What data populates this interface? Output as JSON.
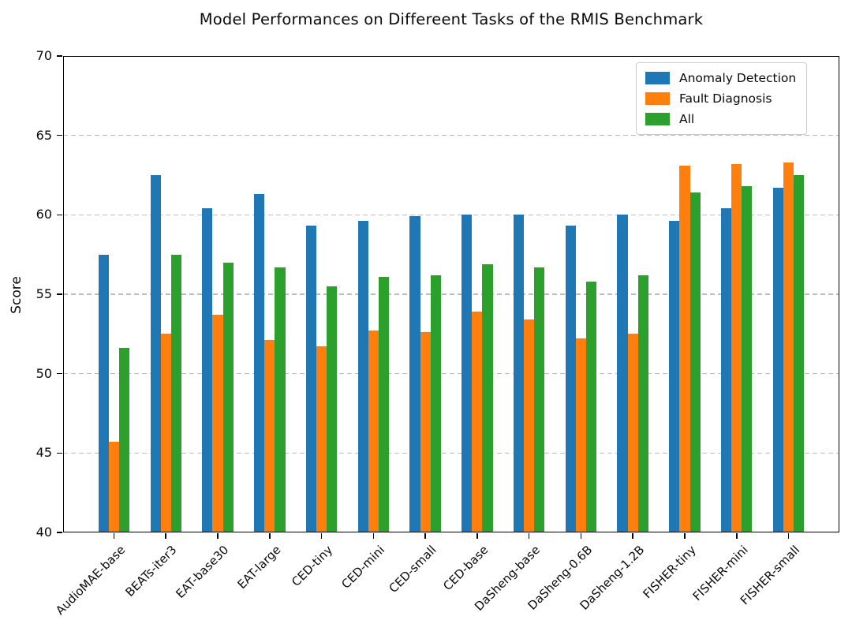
{
  "figure": {
    "background": "#ffffff",
    "text_color": "#0a0a0a",
    "grid_color": "#bcbcbc",
    "spine_color": "#000000",
    "legend_border_color": "#cccccc"
  },
  "chart_data": {
    "type": "bar",
    "title": "Model Performances on Differeent Tasks of the RMIS Benchmark",
    "xlabel": "",
    "ylabel": "Score",
    "ylim": [
      40,
      70
    ],
    "yticks": [
      40,
      45,
      50,
      55,
      60,
      65,
      70
    ],
    "grid": "horizontal dashed at interior yticks",
    "legend_position": "upper right",
    "xtick_rotation": 45,
    "categories": [
      "AudioMAE-base",
      "BEATs-iter3",
      "EAT-base30",
      "EAT-large",
      "CED-tiny",
      "CED-mini",
      "CED-small",
      "CED-base",
      "DaSheng-base",
      "DaSheng-0.6B",
      "DaSheng-1.2B",
      "FISHER-tiny",
      "FISHER-mini",
      "FISHER-small"
    ],
    "series": [
      {
        "name": "Anomaly Detection",
        "color": "#1f77b4",
        "values": [
          57.5,
          62.5,
          60.4,
          61.3,
          59.3,
          59.6,
          59.9,
          60.0,
          60.0,
          59.3,
          60.0,
          59.6,
          60.4,
          61.7
        ]
      },
      {
        "name": "Fault Diagnosis",
        "color": "#ff7f0e",
        "values": [
          45.7,
          52.5,
          53.7,
          52.1,
          51.7,
          52.7,
          52.6,
          53.9,
          53.4,
          52.2,
          52.5,
          63.1,
          63.2,
          63.3
        ]
      },
      {
        "name": "All",
        "color": "#2ca02c",
        "values": [
          51.6,
          57.5,
          57.0,
          56.7,
          55.5,
          56.1,
          56.2,
          56.9,
          56.7,
          55.8,
          56.2,
          61.4,
          61.8,
          62.5
        ]
      }
    ]
  }
}
